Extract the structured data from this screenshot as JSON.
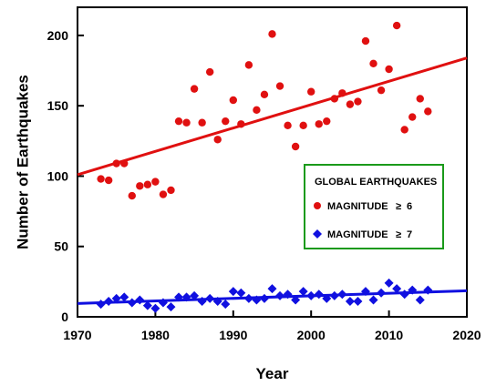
{
  "chart_data": {
    "type": "scatter",
    "xlabel": "Year",
    "ylabel": "Number of Earthquakes",
    "xlim": [
      1970,
      2020
    ],
    "ylim": [
      0,
      220
    ],
    "xticks": [
      1970,
      1980,
      1990,
      2000,
      2010,
      2020
    ],
    "yticks": [
      0,
      50,
      100,
      150,
      200
    ],
    "grid": false,
    "legend": {
      "title": "GLOBAL EARTHQUAKES",
      "placement": "right-middle",
      "border_color": "#1a9a1a",
      "entries": [
        {
          "label": "MAGNITUDE",
          "symbol": "≥",
          "value": "6"
        },
        {
          "label": "MAGNITUDE",
          "symbol": "≥",
          "value": "7"
        }
      ]
    },
    "series": [
      {
        "marker": "circle",
        "color": "#e01010",
        "x": [
          1973,
          1974,
          1975,
          1976,
          1977,
          1978,
          1979,
          1980,
          1981,
          1982,
          1983,
          1984,
          1985,
          1986,
          1987,
          1988,
          1989,
          1990,
          1991,
          1992,
          1993,
          1994,
          1995,
          1996,
          1997,
          1998,
          1999,
          2000,
          2001,
          2002,
          2003,
          2004,
          2005,
          2006,
          2007,
          2008,
          2009,
          2010,
          2011,
          2012,
          2013,
          2014,
          2015
        ],
        "y": [
          98,
          97,
          109,
          109,
          86,
          93,
          94,
          96,
          87,
          90,
          139,
          138,
          162,
          138,
          174,
          126,
          139,
          154,
          137,
          179,
          147,
          158,
          201,
          164,
          136,
          121,
          136,
          160,
          137,
          139,
          155,
          159,
          151,
          153,
          196,
          180,
          161,
          176,
          207,
          133,
          142,
          155,
          146
        ],
        "trend": {
          "x": [
            1970,
            2020
          ],
          "y": [
            101,
            184
          ],
          "color": "#e01010"
        }
      },
      {
        "marker": "diamond",
        "color": "#1010e0",
        "x": [
          1973,
          1974,
          1975,
          1976,
          1977,
          1978,
          1979,
          1980,
          1981,
          1982,
          1983,
          1984,
          1985,
          1986,
          1987,
          1988,
          1989,
          1990,
          1991,
          1992,
          1993,
          1994,
          1995,
          1996,
          1997,
          1998,
          1999,
          2000,
          2001,
          2002,
          2003,
          2004,
          2005,
          2006,
          2007,
          2008,
          2009,
          2010,
          2011,
          2012,
          2013,
          2014,
          2015
        ],
        "y": [
          9,
          11,
          13,
          14,
          10,
          12,
          8,
          6,
          10,
          7,
          14,
          14,
          15,
          11,
          13,
          11,
          9,
          18,
          17,
          13,
          12,
          13,
          20,
          15,
          16,
          12,
          18,
          15,
          16,
          13,
          15,
          16,
          11,
          11,
          18,
          12,
          17,
          24,
          20,
          16,
          19,
          12,
          19
        ],
        "trend": {
          "x": [
            1970,
            2020
          ],
          "y": [
            9.5,
            18.5
          ],
          "color": "#1010e0"
        }
      }
    ]
  }
}
